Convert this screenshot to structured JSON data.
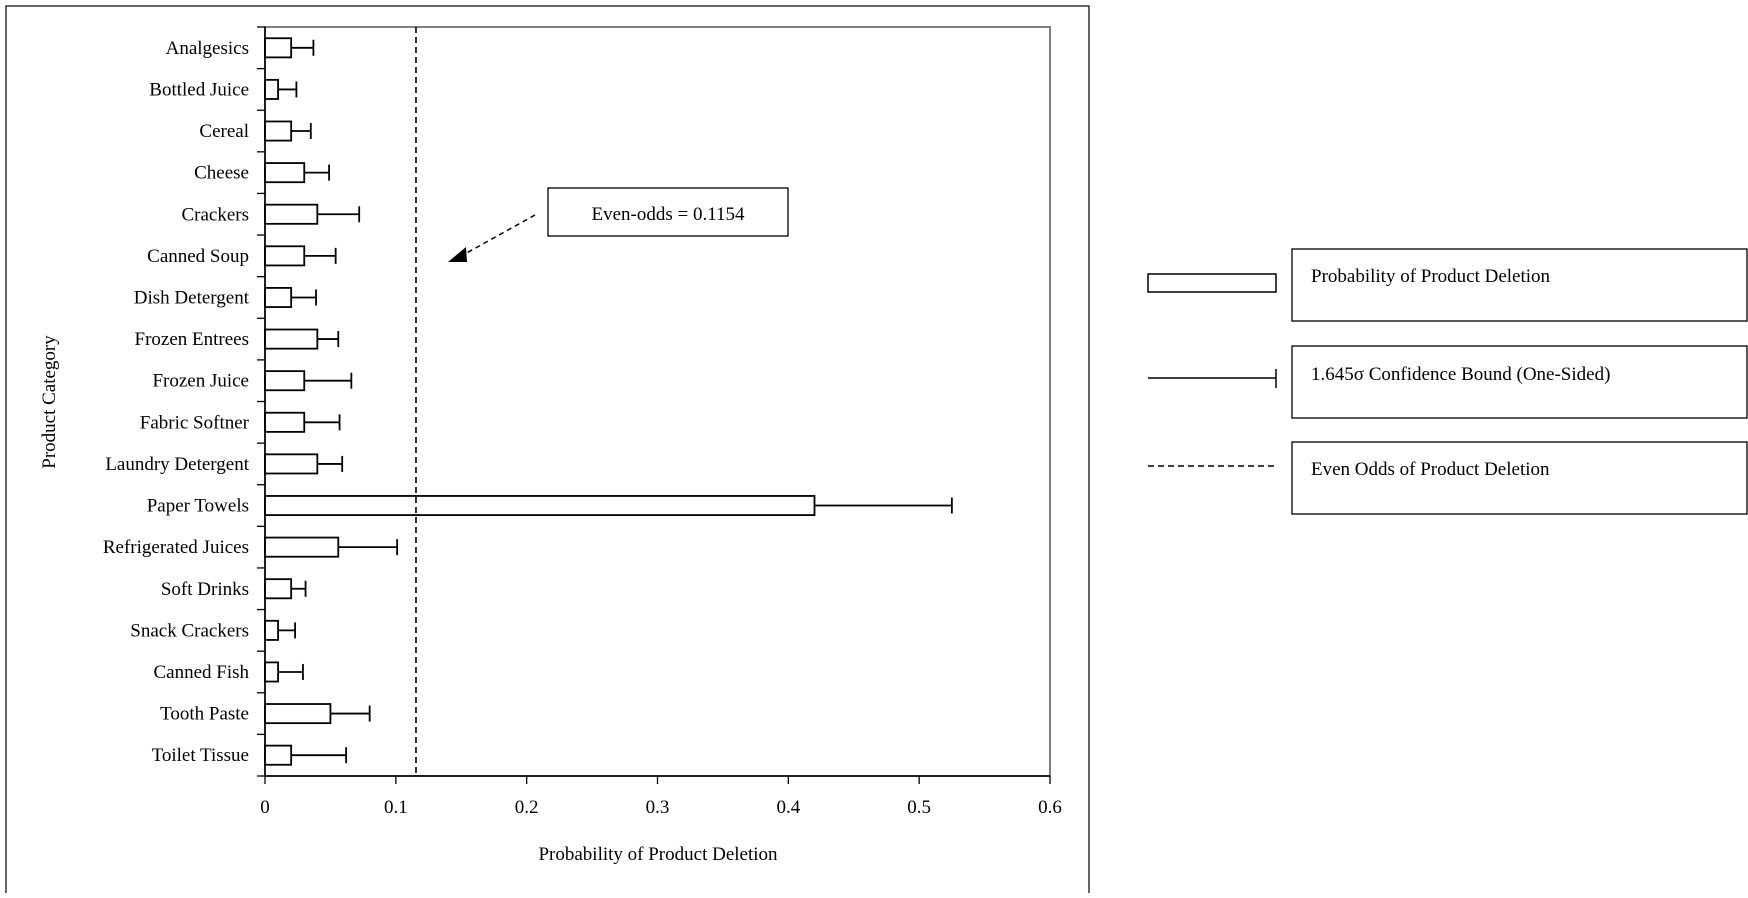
{
  "chart_data": {
    "type": "bar",
    "orientation": "horizontal",
    "ylabel": "Product Category",
    "xlabel": "Probability of Product Deletion",
    "xlim": [
      0,
      0.6
    ],
    "x_ticks": [
      0,
      0.1,
      0.2,
      0.3,
      0.4,
      0.5,
      0.6
    ],
    "x_tick_labels": [
      "0",
      "0.1",
      "0.2",
      "0.3",
      "0.4",
      "0.5",
      "0.6"
    ],
    "grid": false,
    "categories": [
      "Analgesics",
      "Bottled Juice",
      "Cereal",
      "Cheese",
      "Crackers",
      "Canned Soup",
      "Dish Detergent",
      "Frozen Entrees",
      "Frozen Juice",
      "Fabric Softner",
      "Laundry Detergent",
      "Paper Towels",
      "Refrigerated Juices",
      "Soft Drinks",
      "Snack Crackers",
      "Canned Fish",
      "Tooth Paste",
      "Toilet Tissue"
    ],
    "series": [
      {
        "name": "Probability of Product Deletion",
        "values": [
          0.02,
          0.01,
          0.02,
          0.03,
          0.04,
          0.03,
          0.02,
          0.04,
          0.03,
          0.03,
          0.04,
          0.42,
          0.056,
          0.02,
          0.01,
          0.01,
          0.05,
          0.02
        ]
      },
      {
        "name": "1.645σ Confidence Bound (One-Sided)",
        "values": [
          0.037,
          0.024,
          0.035,
          0.049,
          0.072,
          0.054,
          0.039,
          0.056,
          0.066,
          0.057,
          0.059,
          0.525,
          0.101,
          0.031,
          0.023,
          0.029,
          0.08,
          0.062
        ]
      }
    ],
    "reference_line": {
      "name": "Even Odds of Product Deletion",
      "value": 0.1154,
      "annotation": "Even-odds = 0.1154"
    },
    "legend_position": "right"
  }
}
